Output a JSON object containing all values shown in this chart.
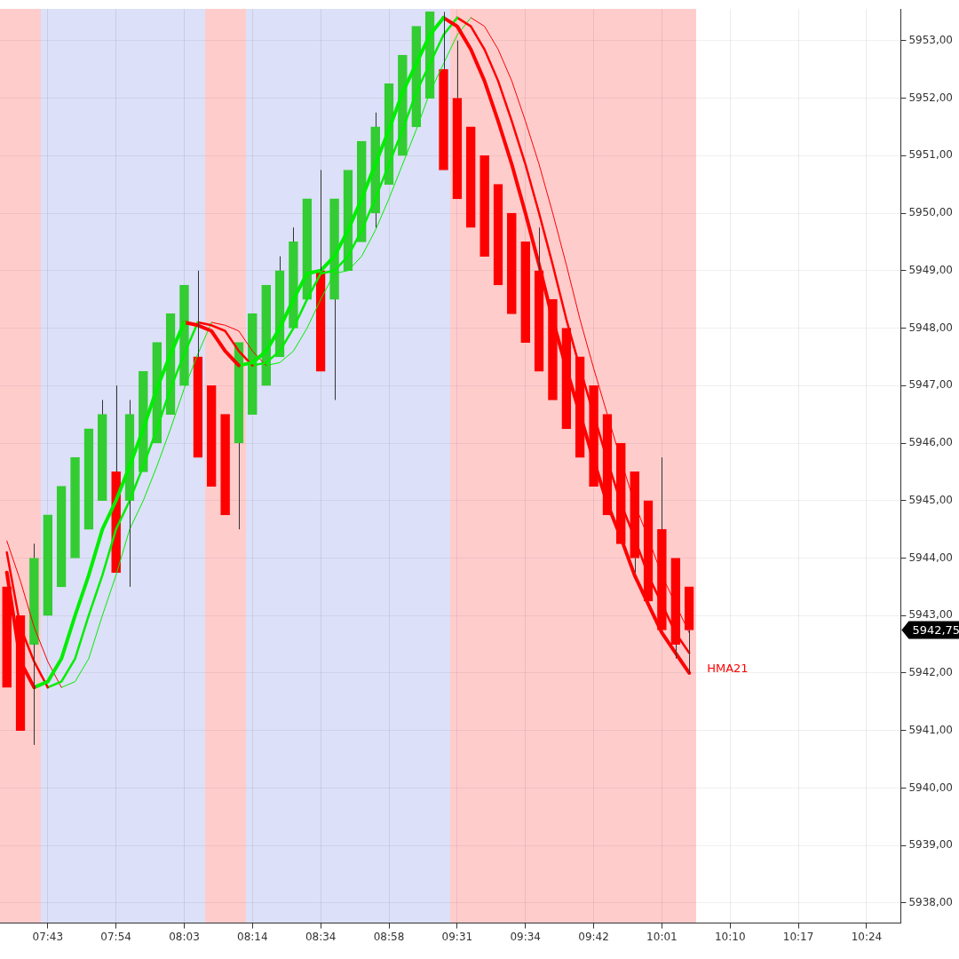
{
  "chart_data": {
    "type": "candlestick",
    "categories": [
      null,
      null,
      null,
      "07:43",
      null,
      null,
      null,
      null,
      "07:54",
      null,
      null,
      null,
      null,
      "08:03",
      null,
      null,
      null,
      null,
      "08:14",
      null,
      null,
      null,
      null,
      "08:34",
      null,
      null,
      null,
      null,
      "08:58",
      null,
      null,
      null,
      null,
      "09:31",
      null,
      null,
      null,
      null,
      "09:34",
      null,
      null,
      null,
      null,
      "09:42",
      null,
      null,
      null,
      null,
      "10:01",
      null,
      null,
      null,
      null,
      "10:10",
      null,
      null,
      null,
      null,
      "10:17",
      null,
      null,
      null,
      null,
      "10:24",
      null,
      null
    ],
    "series": [
      {
        "type": "candlestick",
        "ohlc": [
          [
            5943.5,
            5943.5,
            5941.75,
            5941.75
          ],
          [
            5943.0,
            5943.0,
            5941.0,
            5941.0
          ],
          [
            5942.5,
            5944.25,
            5940.75,
            5944.0
          ],
          [
            5943.0,
            5944.75,
            5943.0,
            5944.75
          ],
          [
            5943.5,
            5945.25,
            5943.5,
            5945.25
          ],
          [
            5944.0,
            5945.75,
            5944.0,
            5945.75
          ],
          [
            5944.5,
            5946.25,
            5944.5,
            5946.25
          ],
          [
            5945.0,
            5946.75,
            5945.0,
            5946.5
          ],
          [
            5945.5,
            5947.0,
            5943.75,
            5943.75
          ],
          [
            5945.0,
            5946.75,
            5943.5,
            5946.5
          ],
          [
            5945.5,
            5947.25,
            5945.5,
            5947.25
          ],
          [
            5946.0,
            5947.75,
            5946.0,
            5947.75
          ],
          [
            5946.5,
            5948.25,
            5946.5,
            5948.25
          ],
          [
            5947.0,
            5948.75,
            5947.0,
            5948.75
          ],
          [
            5947.5,
            5949.0,
            5945.75,
            5945.75
          ],
          [
            5947.0,
            5947.0,
            5945.25,
            5945.25
          ],
          [
            5946.5,
            5946.5,
            5944.75,
            5944.75
          ],
          [
            5946.0,
            5947.75,
            5944.5,
            5947.75
          ],
          [
            5946.5,
            5948.25,
            5946.5,
            5948.25
          ],
          [
            5947.0,
            5948.75,
            5947.0,
            5948.75
          ],
          [
            5947.5,
            5949.25,
            5947.5,
            5949.0
          ],
          [
            5948.0,
            5949.75,
            5948.0,
            5949.5
          ],
          [
            5948.5,
            5950.25,
            5948.5,
            5950.25
          ],
          [
            5949.0,
            5950.75,
            5947.25,
            5947.25
          ],
          [
            5948.5,
            5950.25,
            5946.75,
            5950.25
          ],
          [
            5949.0,
            5950.75,
            5949.0,
            5950.75
          ],
          [
            5949.5,
            5951.25,
            5949.5,
            5951.25
          ],
          [
            5950.0,
            5951.75,
            5949.75,
            5951.5
          ],
          [
            5950.5,
            5952.25,
            5950.5,
            5952.25
          ],
          [
            5951.0,
            5952.75,
            5951.0,
            5952.75
          ],
          [
            5951.5,
            5953.25,
            5951.5,
            5953.25
          ],
          [
            5952.0,
            5953.5,
            5952.0,
            5953.5
          ],
          [
            5952.5,
            5953.5,
            5950.75,
            5950.75
          ],
          [
            5952.0,
            5953.0,
            5950.25,
            5950.25
          ],
          [
            5951.5,
            5951.5,
            5949.75,
            5949.75
          ],
          [
            5951.0,
            5951.0,
            5949.25,
            5949.25
          ],
          [
            5950.5,
            5950.5,
            5948.75,
            5948.75
          ],
          [
            5950.0,
            5950.0,
            5948.25,
            5948.25
          ],
          [
            5949.5,
            5949.5,
            5947.75,
            5947.75
          ],
          [
            5949.0,
            5949.75,
            5947.25,
            5947.25
          ],
          [
            5948.5,
            5948.5,
            5946.75,
            5946.75
          ],
          [
            5948.0,
            5948.0,
            5946.25,
            5946.25
          ],
          [
            5947.5,
            5947.5,
            5945.75,
            5945.75
          ],
          [
            5947.0,
            5947.0,
            5945.25,
            5945.25
          ],
          [
            5946.5,
            5946.5,
            5944.75,
            5944.75
          ],
          [
            5946.0,
            5946.0,
            5944.25,
            5944.25
          ],
          [
            5945.5,
            5945.5,
            5943.75,
            5944.0
          ],
          [
            5945.0,
            5945.0,
            5943.25,
            5943.25
          ],
          [
            5944.5,
            5945.75,
            5942.75,
            5942.75
          ],
          [
            5944.0,
            5944.0,
            5942.25,
            5942.5
          ],
          [
            5943.5,
            5943.5,
            5942.0,
            5942.75
          ],
          null,
          null,
          null,
          null,
          null,
          null,
          null,
          null,
          null,
          null,
          null,
          null,
          null,
          null,
          null
        ],
        "colors": [
          "#ff0000",
          "#ff0000",
          "#33cc33",
          "#33cc33",
          "#33cc33",
          "#33cc33",
          "#33cc33",
          "#33cc33",
          "#ff0000",
          "#33cc33",
          "#33cc33",
          "#33cc33",
          "#33cc33",
          "#33cc33",
          "#ff0000",
          "#ff0000",
          "#ff0000",
          "#33cc33",
          "#33cc33",
          "#33cc33",
          "#33cc33",
          "#33cc33",
          "#33cc33",
          "#ff0000",
          "#33cc33",
          "#33cc33",
          "#33cc33",
          "#33cc33",
          "#33cc33",
          "#33cc33",
          "#33cc33",
          "#33cc33",
          "#ff0000",
          "#ff0000",
          "#ff0000",
          "#ff0000",
          "#ff0000",
          "#ff0000",
          "#ff0000",
          "#ff0000",
          "#ff0000",
          "#ff0000",
          "#ff0000",
          "#ff0000",
          "#ff0000",
          "#ff0000",
          "#ff0000",
          "#ff0000",
          "#ff0000",
          "#ff0000",
          "#ff0000",
          null,
          null,
          null,
          null,
          null,
          null,
          null,
          null,
          null,
          null,
          null,
          null,
          null,
          null,
          null
        ]
      },
      {
        "type": "line",
        "color": "#ff0000",
        "values": [
          5943.75,
          5942.2,
          5941.75,
          null,
          null,
          null,
          null,
          null,
          null,
          null,
          null,
          null,
          null,
          null,
          null,
          null,
          null,
          null,
          null,
          null,
          null,
          null,
          null,
          null,
          null,
          null,
          null,
          null,
          null,
          null,
          null,
          null,
          null,
          null,
          null,
          null,
          null,
          null,
          null,
          null,
          null,
          null,
          null,
          null,
          null,
          null,
          null,
          null,
          null,
          null,
          null,
          null,
          null,
          null,
          null,
          null,
          null,
          null,
          null,
          null,
          null,
          null,
          null,
          null,
          null,
          null
        ]
      },
      {
        "type": "line",
        "color": "#00ee00",
        "values": [
          null,
          null,
          5941.75,
          5941.85,
          5942.25,
          5943.0,
          5943.7,
          5944.5,
          5945.0,
          5945.6,
          5946.25,
          5946.95,
          5947.55,
          5948.1,
          null,
          null,
          null,
          null,
          null,
          null,
          null,
          null,
          null,
          null,
          null,
          null,
          null,
          null,
          null,
          null,
          null,
          null,
          null,
          null,
          null,
          null,
          null,
          null,
          null,
          null,
          null,
          null,
          null,
          null,
          null,
          null,
          null,
          null,
          null,
          null,
          null,
          null,
          null,
          null,
          null,
          null,
          null,
          null,
          null,
          null,
          null,
          null,
          null,
          null,
          null,
          null
        ]
      },
      {
        "type": "line",
        "color": "#ff0000",
        "values": [
          null,
          null,
          null,
          null,
          null,
          null,
          null,
          null,
          null,
          null,
          null,
          null,
          null,
          5948.1,
          5948.05,
          5947.95,
          5947.6,
          5947.35,
          null,
          null,
          null,
          null,
          null,
          null,
          null,
          null,
          null,
          null,
          null,
          null,
          null,
          null,
          null,
          null,
          null,
          null,
          null,
          null,
          null,
          null,
          null,
          null,
          null,
          null,
          null,
          null,
          null,
          null,
          null,
          null,
          null,
          null,
          null,
          null,
          null,
          null,
          null,
          null,
          null,
          null,
          null,
          null,
          null,
          null,
          null,
          null
        ]
      },
      {
        "type": "line",
        "color": "#00ee00",
        "values": [
          null,
          null,
          null,
          null,
          null,
          null,
          null,
          null,
          null,
          null,
          null,
          null,
          null,
          null,
          null,
          null,
          null,
          5947.35,
          5947.4,
          5947.6,
          5948.0,
          5948.5,
          5948.95,
          5949.0,
          5949.25,
          5949.7,
          5950.25,
          5950.85,
          5951.45,
          5952.1,
          5952.6,
          5953.1,
          5953.4,
          null,
          null,
          null,
          null,
          null,
          null,
          null,
          null,
          null,
          null,
          null,
          null,
          null,
          null,
          null,
          null,
          null,
          null,
          null,
          null,
          null,
          null,
          null,
          null,
          null,
          null,
          null,
          null,
          null,
          null,
          null,
          null,
          null
        ]
      },
      {
        "type": "line",
        "name": "HMA21",
        "color": "#ff0000",
        "values": [
          null,
          null,
          null,
          null,
          null,
          null,
          null,
          null,
          null,
          null,
          null,
          null,
          null,
          null,
          null,
          null,
          null,
          null,
          null,
          null,
          null,
          null,
          null,
          null,
          null,
          null,
          null,
          null,
          null,
          null,
          null,
          null,
          5953.4,
          5953.25,
          5952.85,
          5952.3,
          5951.6,
          5950.85,
          5950.0,
          5949.1,
          5948.15,
          5947.3,
          5946.5,
          5945.7,
          5944.95,
          5944.35,
          5943.7,
          5943.2,
          5942.7,
          5942.35,
          5942.0,
          null,
          null,
          null,
          null,
          null,
          null,
          null,
          null,
          null,
          null,
          null,
          null,
          null,
          null,
          null
        ]
      },
      {
        "type": "line",
        "color": "#ff0000",
        "values": [
          5944.1,
          5942.8,
          5942.2,
          5941.75,
          null,
          null,
          null,
          null,
          null,
          null,
          null,
          null,
          null,
          null,
          null,
          null,
          null,
          null,
          null,
          null,
          null,
          null,
          null,
          null,
          null,
          null,
          null,
          null,
          null,
          null,
          null,
          null,
          null,
          null,
          null,
          null,
          null,
          null,
          null,
          null,
          null,
          null,
          null,
          null,
          null,
          null,
          null,
          null,
          null,
          null,
          null,
          null,
          null,
          null,
          null,
          null,
          null,
          null,
          null,
          null,
          null,
          null,
          null,
          null,
          null,
          null
        ]
      },
      {
        "type": "line",
        "color": "#00ee00",
        "values": [
          null,
          null,
          null,
          5941.75,
          5941.85,
          5942.25,
          5943.0,
          5943.7,
          5944.5,
          5945.0,
          5945.6,
          5946.25,
          5946.95,
          5947.55,
          5948.1,
          null,
          null,
          null,
          null,
          null,
          null,
          null,
          null,
          null,
          null,
          null,
          null,
          null,
          null,
          null,
          null,
          null,
          null,
          null,
          null,
          null,
          null,
          null,
          null,
          null,
          null,
          null,
          null,
          null,
          null,
          null,
          null,
          null,
          null,
          null,
          null,
          null,
          null,
          null,
          null,
          null,
          null,
          null,
          null,
          null,
          null,
          null,
          null,
          null,
          null,
          null
        ]
      },
      {
        "type": "line",
        "color": "#ff0000",
        "values": [
          null,
          null,
          null,
          null,
          null,
          null,
          null,
          null,
          null,
          null,
          null,
          null,
          null,
          null,
          5948.1,
          5948.05,
          5947.95,
          5947.6,
          5947.35,
          null,
          null,
          null,
          null,
          null,
          null,
          null,
          null,
          null,
          null,
          null,
          null,
          null,
          null,
          null,
          null,
          null,
          null,
          null,
          null,
          null,
          null,
          null,
          null,
          null,
          null,
          null,
          null,
          null,
          null,
          null,
          null,
          null,
          null,
          null,
          null,
          null,
          null,
          null,
          null,
          null,
          null,
          null,
          null,
          null,
          null,
          null
        ]
      },
      {
        "type": "line",
        "color": "#00ee00",
        "values": [
          null,
          null,
          null,
          null,
          null,
          null,
          null,
          null,
          null,
          null,
          null,
          null,
          null,
          null,
          null,
          null,
          null,
          null,
          5947.35,
          5947.4,
          5947.6,
          5948.0,
          5948.5,
          5948.95,
          5949.0,
          5949.25,
          5949.7,
          5950.25,
          5950.85,
          5951.45,
          5952.1,
          5952.6,
          5953.1,
          5953.4,
          null,
          null,
          null,
          null,
          null,
          null,
          null,
          null,
          null,
          null,
          null,
          null,
          null,
          null,
          null,
          null,
          null,
          null,
          null,
          null,
          null,
          null,
          null,
          null,
          null,
          null,
          null,
          null,
          null,
          null,
          null,
          null
        ]
      },
      {
        "type": "line",
        "color": "#ff0000",
        "values": [
          null,
          null,
          null,
          null,
          null,
          null,
          null,
          null,
          null,
          null,
          null,
          null,
          null,
          null,
          null,
          null,
          null,
          null,
          null,
          null,
          null,
          null,
          null,
          null,
          null,
          null,
          null,
          null,
          null,
          null,
          null,
          null,
          null,
          5953.4,
          5953.25,
          5952.85,
          5952.3,
          5951.6,
          5950.85,
          5950.0,
          5949.1,
          5948.15,
          5947.3,
          5946.5,
          5945.7,
          5944.95,
          5944.35,
          5943.7,
          5943.2,
          5942.7,
          5942.35,
          null,
          null,
          null,
          null,
          null,
          null,
          null,
          null,
          null,
          null,
          null,
          null,
          null,
          null,
          null
        ]
      },
      {
        "type": "line",
        "color": "#ff0000",
        "values": [
          5944.3,
          5943.6,
          5942.8,
          5942.2,
          5941.75,
          null,
          null,
          null,
          null,
          null,
          null,
          null,
          null,
          null,
          null,
          null,
          null,
          null,
          null,
          null,
          null,
          null,
          null,
          null,
          null,
          null,
          null,
          null,
          null,
          null,
          null,
          null,
          null,
          null,
          null,
          null,
          null,
          null,
          null,
          null,
          null,
          null,
          null,
          null,
          null,
          null,
          null,
          null,
          null,
          null,
          null,
          null,
          null,
          null,
          null,
          null,
          null,
          null,
          null,
          null,
          null,
          null,
          null,
          null,
          null,
          null
        ]
      },
      {
        "type": "line",
        "color": "#00ee00",
        "values": [
          null,
          null,
          null,
          null,
          5941.75,
          5941.85,
          5942.25,
          5943.0,
          5943.7,
          5944.5,
          5945.0,
          5945.6,
          5946.25,
          5946.95,
          5947.55,
          5948.1,
          null,
          null,
          null,
          null,
          null,
          null,
          null,
          null,
          null,
          null,
          null,
          null,
          null,
          null,
          null,
          null,
          null,
          null,
          null,
          null,
          null,
          null,
          null,
          null,
          null,
          null,
          null,
          null,
          null,
          null,
          null,
          null,
          null,
          null,
          null,
          null,
          null,
          null,
          null,
          null,
          null,
          null,
          null,
          null,
          null,
          null,
          null,
          null,
          null,
          null
        ]
      },
      {
        "type": "line",
        "color": "#ff0000",
        "values": [
          null,
          null,
          null,
          null,
          null,
          null,
          null,
          null,
          null,
          null,
          null,
          null,
          null,
          null,
          null,
          5948.1,
          5948.05,
          5947.95,
          5947.6,
          5947.35,
          null,
          null,
          null,
          null,
          null,
          null,
          null,
          null,
          null,
          null,
          null,
          null,
          null,
          null,
          null,
          null,
          null,
          null,
          null,
          null,
          null,
          null,
          null,
          null,
          null,
          null,
          null,
          null,
          null,
          null,
          null,
          null,
          null,
          null,
          null,
          null,
          null,
          null,
          null,
          null,
          null,
          null,
          null,
          null,
          null,
          null
        ]
      },
      {
        "type": "line",
        "color": "#00ee00",
        "values": [
          null,
          null,
          null,
          null,
          null,
          null,
          null,
          null,
          null,
          null,
          null,
          null,
          null,
          null,
          null,
          null,
          null,
          null,
          null,
          5947.35,
          5947.4,
          5947.6,
          5948.0,
          5948.5,
          5948.95,
          5949.0,
          5949.25,
          5949.7,
          5950.25,
          5950.85,
          5951.45,
          5952.1,
          5952.6,
          5953.1,
          5953.4,
          null,
          null,
          null,
          null,
          null,
          null,
          null,
          null,
          null,
          null,
          null,
          null,
          null,
          null,
          null,
          null,
          null,
          null,
          null,
          null,
          null,
          null,
          null,
          null,
          null,
          null,
          null,
          null,
          null,
          null,
          null
        ]
      },
      {
        "type": "line",
        "color": "#ff0000",
        "values": [
          null,
          null,
          null,
          null,
          null,
          null,
          null,
          null,
          null,
          null,
          null,
          null,
          null,
          null,
          null,
          null,
          null,
          null,
          null,
          null,
          null,
          null,
          null,
          null,
          null,
          null,
          null,
          null,
          null,
          null,
          null,
          null,
          null,
          null,
          5953.4,
          5953.25,
          5952.85,
          5952.3,
          5951.6,
          5950.85,
          5950.0,
          5949.1,
          5948.15,
          5947.3,
          5946.5,
          5945.7,
          5944.95,
          5944.35,
          5943.7,
          5943.2,
          5942.7,
          null,
          null,
          null,
          null,
          null,
          null,
          null,
          null,
          null,
          null,
          null,
          null,
          null,
          null,
          null
        ]
      }
    ],
    "annotations": [
      "5942,75"
    ],
    "ylim": [
      5937.65,
      5953.55
    ],
    "yticks": [
      {
        "value": 5938,
        "label": "5938,00"
      },
      {
        "value": 5939,
        "label": "5939,00"
      },
      {
        "value": 5940,
        "label": "5940,00"
      },
      {
        "value": 5941,
        "label": "5941,00"
      },
      {
        "value": 5942,
        "label": "5942,00"
      },
      {
        "value": 5943,
        "label": "5943,00"
      },
      {
        "value": 5944,
        "label": "5944,00"
      },
      {
        "value": 5945,
        "label": "5945,00"
      },
      {
        "value": 5946,
        "label": "5946,00"
      },
      {
        "value": 5947,
        "label": "5947,00"
      },
      {
        "value": 5948,
        "label": "5948,00"
      },
      {
        "value": 5949,
        "label": "5949,00"
      },
      {
        "value": 5950,
        "label": "5950,00"
      },
      {
        "value": 5951,
        "label": "5951,00"
      },
      {
        "value": 5952,
        "label": "5952,00"
      },
      {
        "value": 5953,
        "label": "5953,00"
      }
    ],
    "grid": true,
    "legend": false
  }
}
